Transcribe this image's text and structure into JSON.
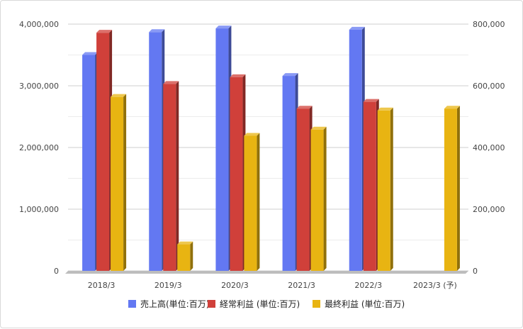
{
  "chart_data": {
    "type": "bar",
    "title": "",
    "categories": [
      "2018/3",
      "2019/3",
      "2020/3",
      "2021/3",
      "2022/3",
      "2023/3 (予)"
    ],
    "series": [
      {
        "name": "売上高(単位:百万)",
        "axis": "left",
        "color": "#6378f2",
        "values": [
          3500000,
          3870000,
          3930000,
          3160000,
          3910000,
          null
        ]
      },
      {
        "name": "経常利益 (単位:百万)",
        "axis": "right",
        "color": "#d0403a",
        "values": [
          772000,
          606000,
          628000,
          526000,
          548000,
          null
        ]
      },
      {
        "name": "最終利益 (単位:百万)",
        "axis": "right",
        "color": "#e8b412",
        "values": [
          564000,
          86000,
          438000,
          458000,
          520000,
          526000
        ]
      }
    ],
    "y_left": {
      "min": 0,
      "max": 4000000,
      "ticks": [
        "0",
        "1,000,000",
        "2,000,000",
        "3,000,000",
        "4,000,000"
      ]
    },
    "y_right": {
      "min": 0,
      "max": 800000,
      "ticks": [
        "0",
        "200,000",
        "400,000",
        "600,000",
        "800,000"
      ]
    },
    "grid": true,
    "legend_position": "bottom"
  }
}
